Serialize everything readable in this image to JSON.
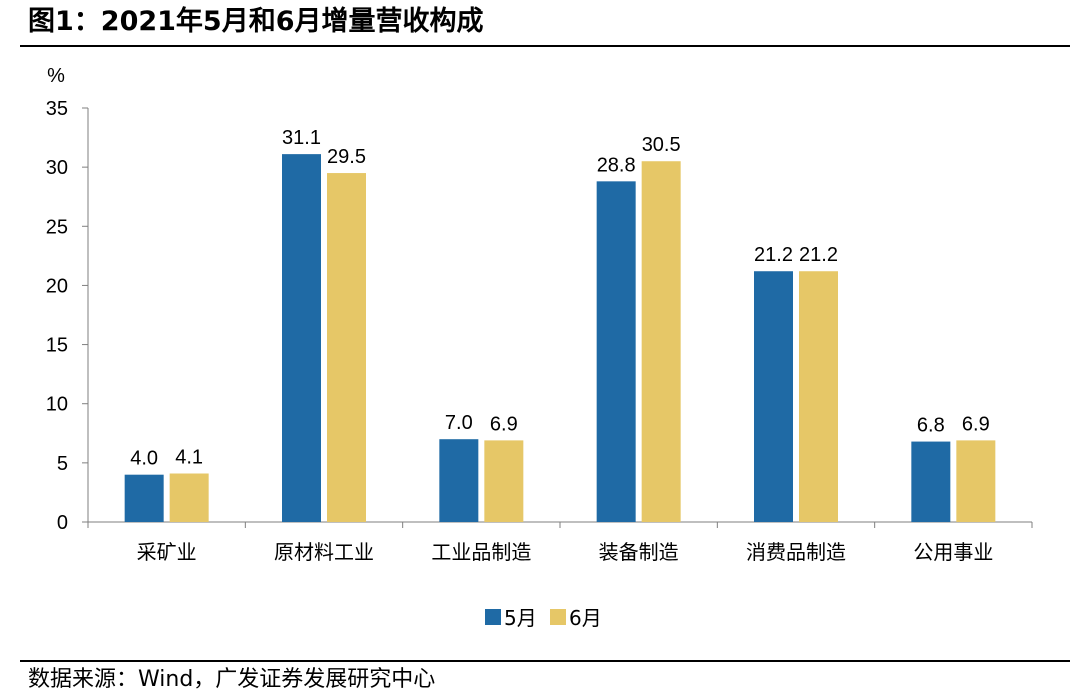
{
  "figure": {
    "title": "图1：2021年5月和6月增量营收构成",
    "source": "数据来源：Wind，广发证券发展研究中心"
  },
  "chart_data": {
    "type": "bar",
    "title": "图1：2021年5月和6月增量营收构成",
    "ylabel": "%",
    "xlabel": "",
    "ylim": [
      0,
      35
    ],
    "yticks": [
      0,
      5,
      10,
      15,
      20,
      25,
      30,
      35
    ],
    "categories": [
      "采矿业",
      "原材料工业",
      "工业品制造",
      "装备制造",
      "消费品制造",
      "公用事业"
    ],
    "series": [
      {
        "name": "5月",
        "values": [
          4.0,
          31.1,
          7.0,
          28.8,
          21.2,
          6.8
        ],
        "labels": [
          "4.0",
          "31.1",
          "7.0",
          "28.8",
          "21.2",
          "6.8"
        ],
        "color": "#1F6AA5"
      },
      {
        "name": "6月",
        "values": [
          4.1,
          29.5,
          6.9,
          30.5,
          21.2,
          6.9
        ],
        "labels": [
          "4.1",
          "29.5",
          "6.9",
          "30.5",
          "21.2",
          "6.9"
        ],
        "color": "#E6C767"
      }
    ],
    "grid": false,
    "legend": "bottom-center",
    "data_labels": true
  }
}
